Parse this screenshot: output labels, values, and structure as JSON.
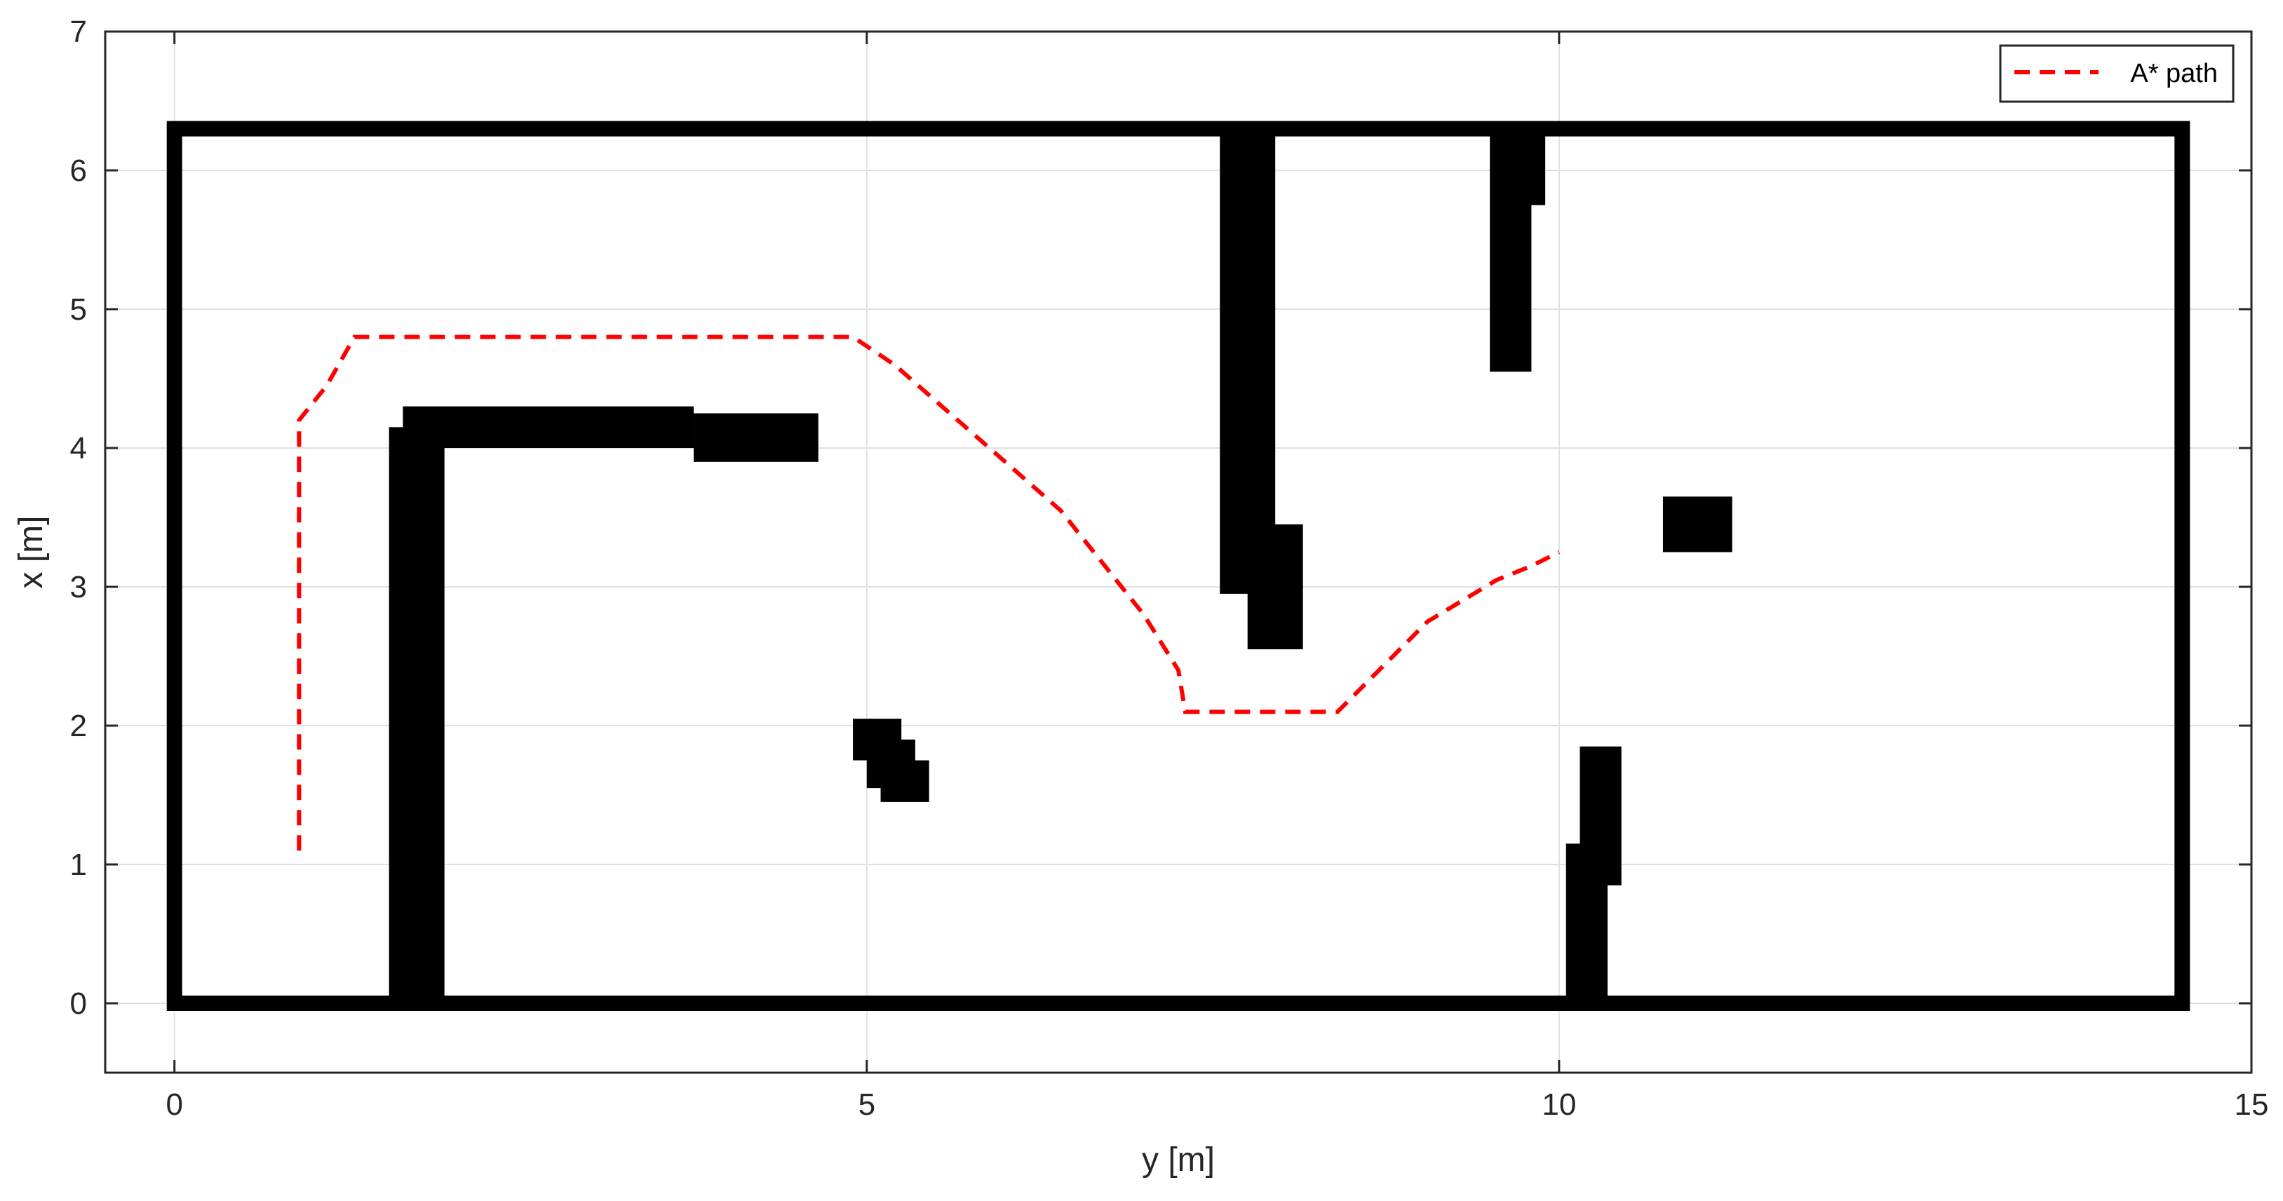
{
  "chart_data": {
    "type": "line",
    "title": "",
    "xlabel": "y [m]",
    "ylabel": "x [m]",
    "xlim": [
      -0.5,
      15
    ],
    "ylim": [
      -0.5,
      7
    ],
    "xticks": [
      0,
      5,
      10,
      15
    ],
    "yticks": [
      0,
      1,
      2,
      3,
      4,
      5,
      6,
      7
    ],
    "grid": true,
    "legend": {
      "location": "top-right",
      "entries": [
        "A* path"
      ]
    },
    "colors": {
      "path": "#ff0000",
      "obstacle": "#000000",
      "grid": "#e0e0e0",
      "axes": "#262626"
    },
    "map_boundary": {
      "y_min": 0,
      "y_max": 14.5,
      "x_min": 0,
      "x_max": 6.3
    },
    "obstacles": [
      {
        "y0": 1.55,
        "y1": 1.95,
        "x0": 0,
        "x1": 4.15
      },
      {
        "y0": 1.65,
        "y1": 3.75,
        "x0": 4.0,
        "x1": 4.3
      },
      {
        "y0": 3.75,
        "y1": 4.65,
        "x0": 3.9,
        "x1": 4.25
      },
      {
        "y0": 7.55,
        "y1": 7.95,
        "x0": 2.95,
        "x1": 6.3
      },
      {
        "y0": 7.75,
        "y1": 8.15,
        "x0": 2.55,
        "x1": 3.45
      },
      {
        "y0": 9.5,
        "y1": 9.8,
        "x0": 4.55,
        "x1": 6.3
      },
      {
        "y0": 9.75,
        "y1": 9.9,
        "x0": 5.75,
        "x1": 6.3
      },
      {
        "y0": 10.75,
        "y1": 11.25,
        "x0": 3.25,
        "x1": 3.65
      },
      {
        "y0": 10.05,
        "y1": 10.35,
        "x0": 0,
        "x1": 1.15
      },
      {
        "y0": 10.15,
        "y1": 10.45,
        "x0": 0.85,
        "x1": 1.85
      },
      {
        "y0": 4.9,
        "y1": 5.25,
        "x0": 1.75,
        "x1": 2.05
      },
      {
        "y0": 5.0,
        "y1": 5.35,
        "x0": 1.55,
        "x1": 1.9
      },
      {
        "y0": 5.1,
        "y1": 5.45,
        "x0": 1.45,
        "x1": 1.75
      }
    ],
    "series": [
      {
        "name": "A* path",
        "style": "dashed",
        "points": [
          [
            0.9,
            1.1
          ],
          [
            0.9,
            4.2
          ],
          [
            1.1,
            4.45
          ],
          [
            1.3,
            4.8
          ],
          [
            4.9,
            4.8
          ],
          [
            5.2,
            4.6
          ],
          [
            5.6,
            4.25
          ],
          [
            6.4,
            3.55
          ],
          [
            7.0,
            2.8
          ],
          [
            7.25,
            2.4
          ],
          [
            7.3,
            2.1
          ],
          [
            8.4,
            2.1
          ],
          [
            8.75,
            2.45
          ],
          [
            9.05,
            2.75
          ],
          [
            9.3,
            2.9
          ],
          [
            9.55,
            3.05
          ],
          [
            9.8,
            3.15
          ],
          [
            10.0,
            3.25
          ]
        ]
      }
    ]
  }
}
